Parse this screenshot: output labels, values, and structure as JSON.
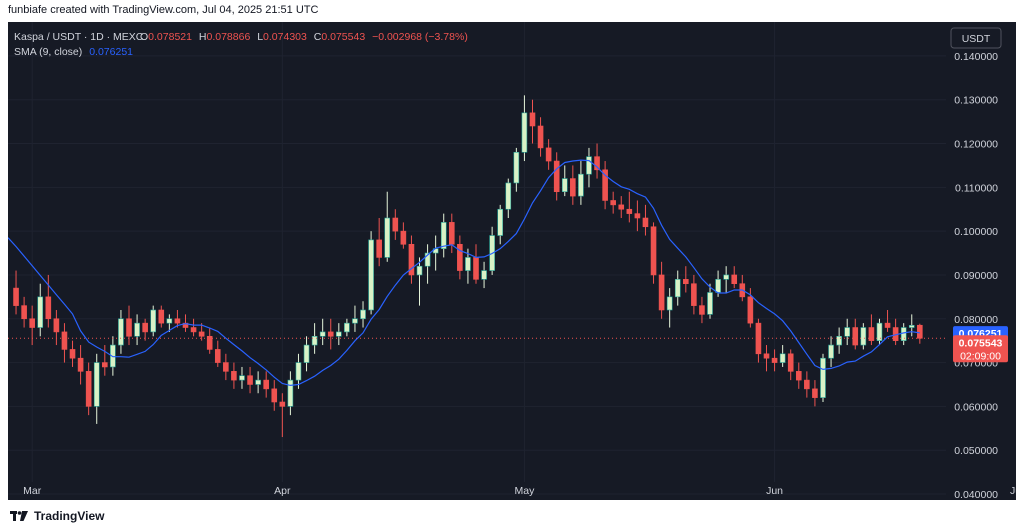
{
  "credit": "funbiafe created with TradingView.com, Jul 04, 2025 21:51 UTC",
  "footer": {
    "brand": "TradingView"
  },
  "header": {
    "symbol": "Kaspa / USDT · 1D · MEXC",
    "o_label": "O",
    "o_value": "0.078521",
    "h_label": "H",
    "h_value": "0.078866",
    "l_label": "L",
    "l_value": "0.074303",
    "c_label": "C",
    "c_value": "0.075543",
    "change": "−0.002968 (−3.78%)",
    "indicator_name": "SMA (9, close)",
    "indicator_value": "0.076251"
  },
  "currency_button": "USDT",
  "colors": {
    "background": "#161a25",
    "up": "#26a69a",
    "up_body": "#d9f2c6",
    "down": "#ef5350",
    "sma": "#2962ff",
    "text": "#d1d4dc",
    "grid": "#1f2330"
  },
  "chart_data": {
    "type": "candlestick",
    "symbol": "Kaspa / USDT",
    "interval": "1D",
    "exchange": "MEXC",
    "ylim": [
      0.04,
      0.145
    ],
    "y_ticks": [
      "0.140000",
      "0.130000",
      "0.120000",
      "0.110000",
      "0.100000",
      "0.090000",
      "0.080000",
      "0.070000",
      "0.060000",
      "0.050000",
      "0.040000"
    ],
    "x_ticks": [
      {
        "label": "Mar",
        "index": 2
      },
      {
        "label": "Apr",
        "index": 33
      },
      {
        "label": "May",
        "index": 63
      },
      {
        "label": "Jun",
        "index": 94
      },
      {
        "label": "Jul",
        "index": 124
      }
    ],
    "last_price_labels": {
      "sma": "0.076251",
      "close": "0.075543",
      "countdown": "02:09:00"
    },
    "candles": [
      [
        0.087,
        0.091,
        0.081,
        0.083
      ],
      [
        0.083,
        0.085,
        0.078,
        0.08
      ],
      [
        0.08,
        0.083,
        0.074,
        0.078
      ],
      [
        0.078,
        0.088,
        0.076,
        0.085
      ],
      [
        0.085,
        0.09,
        0.078,
        0.08
      ],
      [
        0.08,
        0.082,
        0.074,
        0.077
      ],
      [
        0.077,
        0.079,
        0.07,
        0.073
      ],
      [
        0.073,
        0.075,
        0.069,
        0.071
      ],
      [
        0.071,
        0.074,
        0.065,
        0.068
      ],
      [
        0.068,
        0.07,
        0.058,
        0.06
      ],
      [
        0.06,
        0.072,
        0.056,
        0.07
      ],
      [
        0.07,
        0.074,
        0.067,
        0.069
      ],
      [
        0.069,
        0.076,
        0.067,
        0.074
      ],
      [
        0.074,
        0.082,
        0.072,
        0.08
      ],
      [
        0.08,
        0.083,
        0.074,
        0.076
      ],
      [
        0.076,
        0.081,
        0.074,
        0.079
      ],
      [
        0.079,
        0.08,
        0.075,
        0.077
      ],
      [
        0.077,
        0.083,
        0.076,
        0.082
      ],
      [
        0.082,
        0.083,
        0.078,
        0.079
      ],
      [
        0.079,
        0.081,
        0.077,
        0.08
      ],
      [
        0.08,
        0.082,
        0.078,
        0.079
      ],
      [
        0.079,
        0.081,
        0.077,
        0.078
      ],
      [
        0.078,
        0.08,
        0.076,
        0.077
      ],
      [
        0.077,
        0.079,
        0.075,
        0.076
      ],
      [
        0.076,
        0.078,
        0.072,
        0.073
      ],
      [
        0.073,
        0.075,
        0.069,
        0.07
      ],
      [
        0.07,
        0.072,
        0.066,
        0.068
      ],
      [
        0.068,
        0.07,
        0.064,
        0.066
      ],
      [
        0.066,
        0.069,
        0.064,
        0.067
      ],
      [
        0.067,
        0.069,
        0.063,
        0.065
      ],
      [
        0.065,
        0.068,
        0.063,
        0.066
      ],
      [
        0.066,
        0.068,
        0.062,
        0.064
      ],
      [
        0.064,
        0.066,
        0.059,
        0.061
      ],
      [
        0.061,
        0.063,
        0.053,
        0.06
      ],
      [
        0.06,
        0.068,
        0.058,
        0.066
      ],
      [
        0.066,
        0.072,
        0.064,
        0.07
      ],
      [
        0.07,
        0.076,
        0.068,
        0.074
      ],
      [
        0.074,
        0.079,
        0.072,
        0.076
      ],
      [
        0.076,
        0.08,
        0.074,
        0.077
      ],
      [
        0.077,
        0.08,
        0.073,
        0.076
      ],
      [
        0.076,
        0.079,
        0.074,
        0.077
      ],
      [
        0.077,
        0.08,
        0.076,
        0.079
      ],
      [
        0.079,
        0.083,
        0.077,
        0.08
      ],
      [
        0.08,
        0.084,
        0.078,
        0.082
      ],
      [
        0.082,
        0.1,
        0.081,
        0.098
      ],
      [
        0.098,
        0.103,
        0.092,
        0.094
      ],
      [
        0.094,
        0.109,
        0.093,
        0.103
      ],
      [
        0.103,
        0.105,
        0.098,
        0.1
      ],
      [
        0.1,
        0.102,
        0.096,
        0.097
      ],
      [
        0.097,
        0.099,
        0.088,
        0.09
      ],
      [
        0.09,
        0.094,
        0.083,
        0.092
      ],
      [
        0.092,
        0.097,
        0.088,
        0.095
      ],
      [
        0.095,
        0.099,
        0.091,
        0.096
      ],
      [
        0.096,
        0.104,
        0.094,
        0.102
      ],
      [
        0.102,
        0.104,
        0.095,
        0.097
      ],
      [
        0.097,
        0.099,
        0.089,
        0.091
      ],
      [
        0.091,
        0.096,
        0.088,
        0.094
      ],
      [
        0.094,
        0.097,
        0.088,
        0.089
      ],
      [
        0.089,
        0.093,
        0.087,
        0.091
      ],
      [
        0.091,
        0.101,
        0.09,
        0.099
      ],
      [
        0.099,
        0.106,
        0.097,
        0.105
      ],
      [
        0.105,
        0.112,
        0.103,
        0.111
      ],
      [
        0.111,
        0.119,
        0.109,
        0.118
      ],
      [
        0.118,
        0.131,
        0.116,
        0.127
      ],
      [
        0.127,
        0.13,
        0.12,
        0.124
      ],
      [
        0.124,
        0.126,
        0.117,
        0.119
      ],
      [
        0.119,
        0.121,
        0.114,
        0.116
      ],
      [
        0.116,
        0.118,
        0.107,
        0.109
      ],
      [
        0.109,
        0.115,
        0.108,
        0.112
      ],
      [
        0.112,
        0.115,
        0.106,
        0.108
      ],
      [
        0.108,
        0.116,
        0.106,
        0.113
      ],
      [
        0.113,
        0.119,
        0.11,
        0.117
      ],
      [
        0.117,
        0.12,
        0.112,
        0.114
      ],
      [
        0.114,
        0.116,
        0.105,
        0.107
      ],
      [
        0.107,
        0.109,
        0.104,
        0.106
      ],
      [
        0.106,
        0.108,
        0.103,
        0.105
      ],
      [
        0.105,
        0.109,
        0.102,
        0.104
      ],
      [
        0.104,
        0.107,
        0.1,
        0.103
      ],
      [
        0.103,
        0.106,
        0.099,
        0.101
      ],
      [
        0.101,
        0.102,
        0.088,
        0.09
      ],
      [
        0.09,
        0.093,
        0.08,
        0.082
      ],
      [
        0.082,
        0.087,
        0.078,
        0.085
      ],
      [
        0.085,
        0.091,
        0.083,
        0.089
      ],
      [
        0.089,
        0.092,
        0.086,
        0.088
      ],
      [
        0.088,
        0.09,
        0.081,
        0.083
      ],
      [
        0.083,
        0.085,
        0.079,
        0.081
      ],
      [
        0.081,
        0.088,
        0.08,
        0.086
      ],
      [
        0.086,
        0.091,
        0.085,
        0.089
      ],
      [
        0.089,
        0.092,
        0.086,
        0.09
      ],
      [
        0.09,
        0.092,
        0.087,
        0.088
      ],
      [
        0.088,
        0.09,
        0.084,
        0.085
      ],
      [
        0.085,
        0.087,
        0.078,
        0.079
      ],
      [
        0.079,
        0.08,
        0.07,
        0.072
      ],
      [
        0.072,
        0.074,
        0.068,
        0.071
      ],
      [
        0.071,
        0.073,
        0.068,
        0.07
      ],
      [
        0.07,
        0.074,
        0.069,
        0.072
      ],
      [
        0.072,
        0.073,
        0.066,
        0.068
      ],
      [
        0.068,
        0.07,
        0.064,
        0.066
      ],
      [
        0.066,
        0.068,
        0.062,
        0.064
      ],
      [
        0.064,
        0.066,
        0.06,
        0.062
      ],
      [
        0.062,
        0.072,
        0.061,
        0.071
      ],
      [
        0.071,
        0.076,
        0.069,
        0.074
      ],
      [
        0.074,
        0.078,
        0.072,
        0.076
      ],
      [
        0.076,
        0.08,
        0.074,
        0.078
      ],
      [
        0.078,
        0.08,
        0.073,
        0.074
      ],
      [
        0.074,
        0.079,
        0.073,
        0.078
      ],
      [
        0.078,
        0.081,
        0.074,
        0.075
      ],
      [
        0.075,
        0.08,
        0.074,
        0.079
      ],
      [
        0.079,
        0.082,
        0.077,
        0.078
      ],
      [
        0.078,
        0.08,
        0.074,
        0.075
      ],
      [
        0.075,
        0.079,
        0.074,
        0.078
      ],
      [
        0.078,
        0.081,
        0.076,
        0.0785
      ],
      [
        0.078521,
        0.078866,
        0.074303,
        0.075543
      ]
    ]
  }
}
